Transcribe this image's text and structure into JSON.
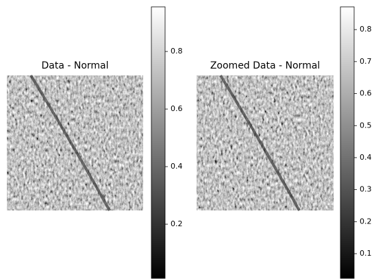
{
  "chart_data": [
    {
      "type": "image",
      "title": "Data - Normal",
      "colormap": "gray",
      "clim": [
        0.012,
        0.955
      ],
      "cticks": [
        0.2,
        0.4,
        0.6,
        0.8
      ]
    },
    {
      "type": "image",
      "title": "Zoomed Data - Normal",
      "colormap": "gray",
      "clim": [
        0.023,
        0.871
      ],
      "cticks": [
        0.1,
        0.2,
        0.3,
        0.4,
        0.5,
        0.6,
        0.7,
        0.8
      ]
    }
  ]
}
